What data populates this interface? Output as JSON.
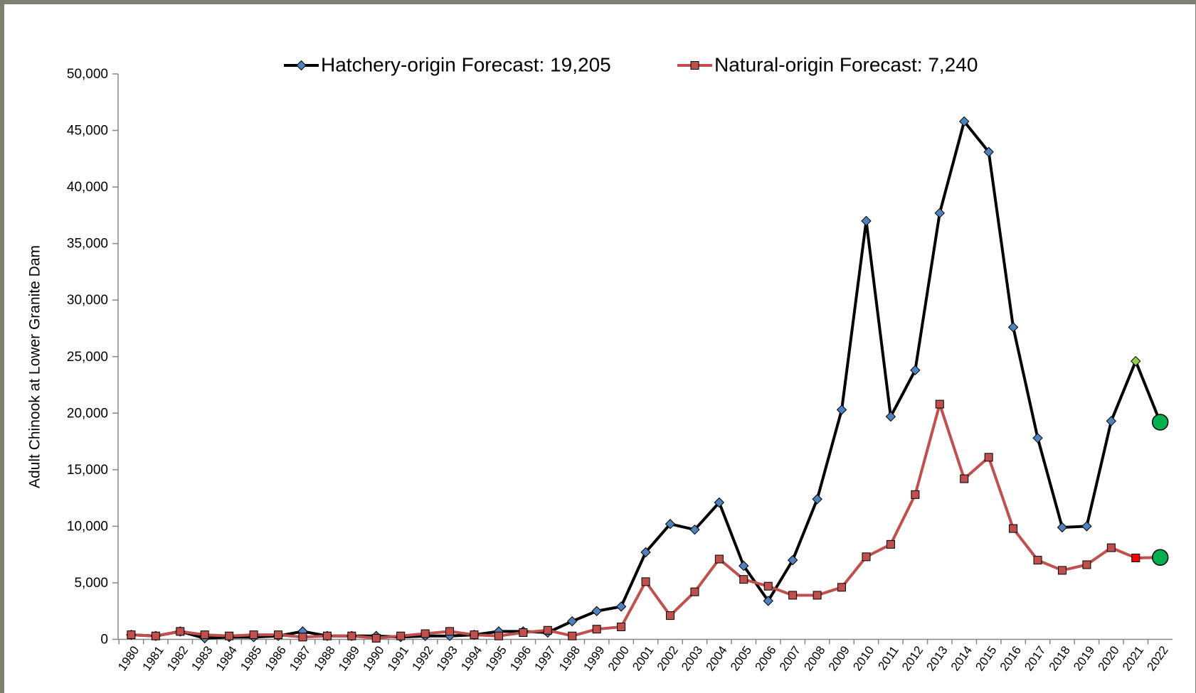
{
  "chart_data": {
    "type": "line",
    "y_label": "Adult Chinook at Lower Granite Dam",
    "categories": [
      "1980",
      "1981",
      "1982",
      "1983",
      "1984",
      "1985",
      "1986",
      "1987",
      "1988",
      "1989",
      "1990",
      "1991",
      "1992",
      "1993",
      "1994",
      "1995",
      "1996",
      "1997",
      "1998",
      "1999",
      "2000",
      "2001",
      "2002",
      "2003",
      "2004",
      "2005",
      "2006",
      "2007",
      "2008",
      "2009",
      "2010",
      "2011",
      "2012",
      "2013",
      "2014",
      "2015",
      "2016",
      "2017",
      "2018",
      "2019",
      "2020",
      "2021",
      "2022"
    ],
    "series": [
      {
        "name": "Hatchery-origin Forecast: 19,205",
        "color": "#000000",
        "marker": "diamond",
        "marker_color": "#4f81bd",
        "recent_color": "#92d050",
        "forecast_color": "#00b050",
        "values": [
          400,
          300,
          700,
          100,
          200,
          200,
          300,
          700,
          300,
          300,
          300,
          200,
          300,
          300,
          400,
          700,
          700,
          600,
          1600,
          2500,
          2900,
          7700,
          10200,
          9700,
          12100,
          6500,
          3400,
          7000,
          12400,
          20300,
          37000,
          19700,
          23800,
          37700,
          45800,
          43100,
          27600,
          17800,
          9900,
          10000,
          19300,
          24600,
          19205
        ]
      },
      {
        "name": "Natural-origin Forecast: 7,240",
        "color": "#c0504d",
        "marker": "square",
        "marker_color": "#c0504d",
        "recent_color": "#ff0000",
        "forecast_color": "#00b050",
        "values": [
          400,
          300,
          700,
          400,
          300,
          400,
          400,
          200,
          300,
          300,
          100,
          300,
          500,
          700,
          400,
          300,
          600,
          800,
          300,
          900,
          1100,
          5100,
          2100,
          4200,
          7100,
          5300,
          4700,
          3900,
          3900,
          4600,
          7300,
          8400,
          12800,
          20800,
          14200,
          16100,
          9800,
          7000,
          6100,
          6600,
          8100,
          7200,
          7240
        ]
      }
    ],
    "ylim": [
      0,
      50000
    ],
    "yticks": [
      0,
      {
        "value": 5000,
        "label": "5,000"
      },
      {
        "value": 10000,
        "label": "10,000"
      },
      {
        "value": 15000,
        "label": "15,000"
      },
      {
        "value": 20000,
        "label": "20,000"
      },
      {
        "value": 25000,
        "label": "25,000"
      },
      {
        "value": 30000,
        "label": "30,000"
      },
      {
        "value": 35000,
        "label": "35,000"
      },
      {
        "value": 40000,
        "label": "40,000"
      },
      {
        "value": 45000,
        "label": "45,000"
      },
      {
        "value": 50000,
        "label": "50,000"
      }
    ],
    "grid": false,
    "legend": "top"
  }
}
